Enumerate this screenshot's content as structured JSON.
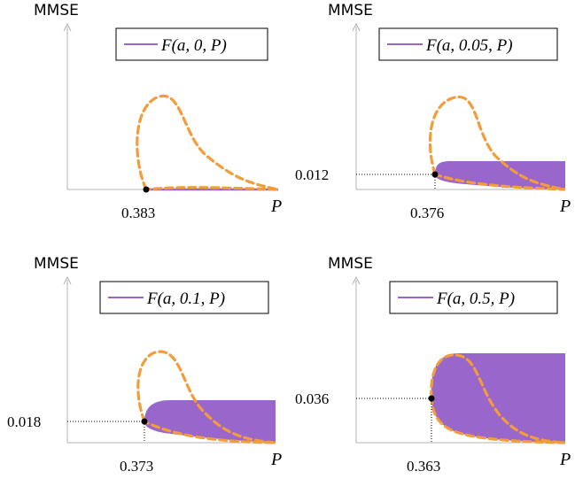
{
  "colors": {
    "fill": "#9966cc",
    "curve": "#f39c3b",
    "axis": "#b3b3b3",
    "point": "#000000"
  },
  "chart_data": [
    {
      "type": "area",
      "ylabel": "MMSE",
      "xlabel": "P",
      "legend": "F(a, 0, P)",
      "legend_position": "top-right",
      "x_tick": "0.383",
      "y_tick": ""
    },
    {
      "type": "area",
      "ylabel": "MMSE",
      "xlabel": "P",
      "legend": "F(a, 0.05, P)",
      "legend_position": "top-right",
      "x_tick": "0.376",
      "y_tick": "0.012"
    },
    {
      "type": "area",
      "ylabel": "MMSE",
      "xlabel": "P",
      "legend": "F(a, 0.1, P)",
      "legend_position": "top-right",
      "x_tick": "0.373",
      "y_tick": "0.018"
    },
    {
      "type": "area",
      "ylabel": "MMSE",
      "xlabel": "P",
      "legend": "F(a, 0.5, P)",
      "legend_position": "top-right",
      "x_tick": "0.363",
      "y_tick": "0.036"
    }
  ]
}
